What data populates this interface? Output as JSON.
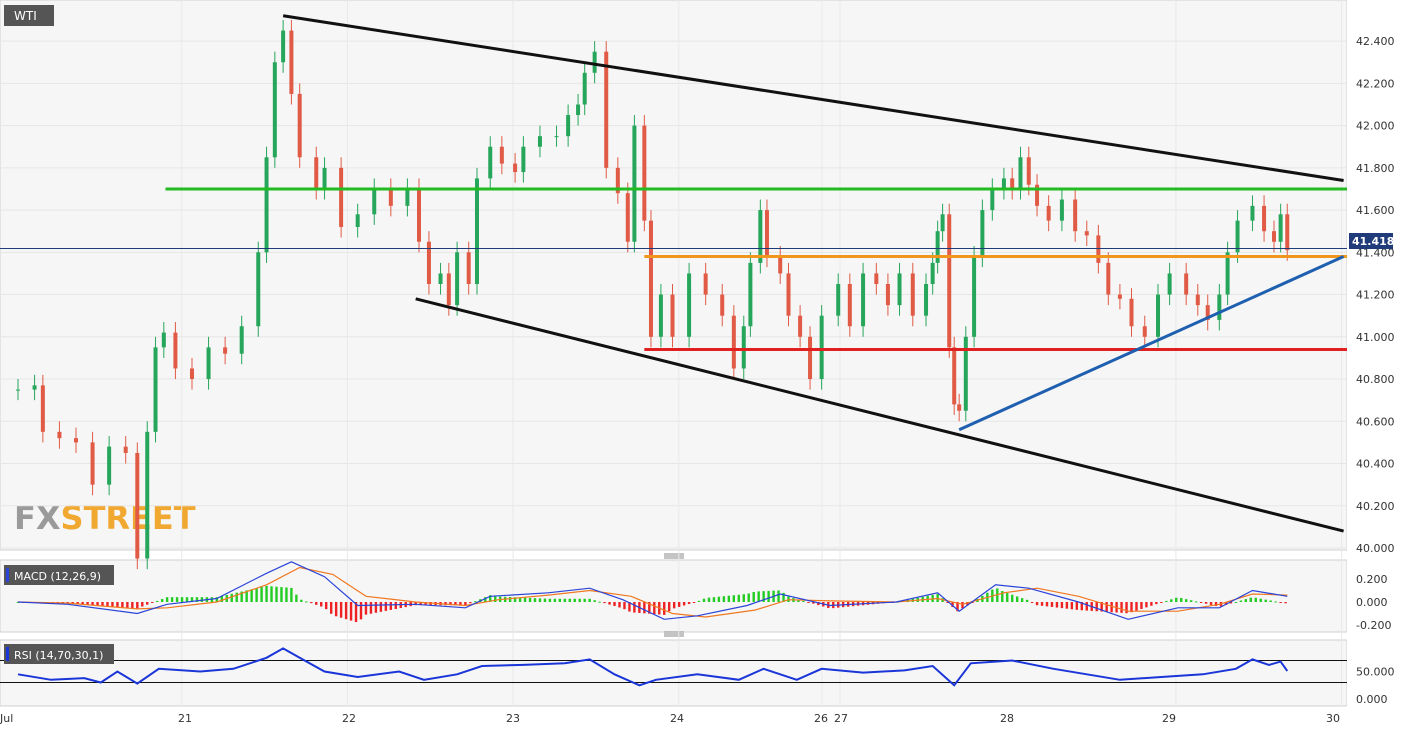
{
  "instrument": "WTI",
  "watermark": {
    "fx": "FX",
    "street": "STREET"
  },
  "price_tag": "41.418",
  "panels": {
    "macd_label": "MACD (12,26,9)",
    "rsi_label": "RSI (14,70,30,1)"
  },
  "colors": {
    "bull": "#26a65b",
    "bear": "#e05a45",
    "trend": "#111111",
    "resistance": "#22bb22",
    "pivot": "#f0961c",
    "support": "#e02020",
    "rising_trend": "#1f5fb0",
    "price_line": "#1f3b7a",
    "price_tag_bg": "#1f3b7a",
    "macd_line": "#2a44d8",
    "signal_line": "#f07820",
    "hist_pos": "#22cc22",
    "hist_neg": "#ee2222",
    "rsi_line": "#1a35d8"
  },
  "chart_data": [
    {
      "type": "candlestick",
      "title": "WTI",
      "ylim": [
        40.0,
        42.5
      ],
      "y_ticks": [
        "42.400",
        "42.200",
        "42.000",
        "41.800",
        "41.600",
        "41.400",
        "41.200",
        "41.000",
        "40.800",
        "40.600",
        "40.400",
        "40.200",
        "40.000"
      ],
      "x_ticks": [
        "Jul",
        "21",
        "22",
        "23",
        "24",
        "26",
        "27",
        "28",
        "29",
        "30"
      ],
      "current_price": 41.418,
      "levels": [
        {
          "name": "resistance",
          "value": 41.7,
          "from": 0.89,
          "to": 2.0
        },
        {
          "name": "pivot",
          "value": 41.38,
          "from": 3.78,
          "to": 2.0
        },
        {
          "name": "support",
          "value": 40.94,
          "from": 3.78,
          "to": 2.0
        }
      ],
      "trendlines": [
        {
          "name": "upper",
          "from": [
            1.6,
            42.52
          ],
          "to": [
            8.0,
            41.74
          ]
        },
        {
          "name": "lower",
          "from": [
            2.4,
            41.18
          ],
          "to": [
            8.0,
            40.08
          ]
        },
        {
          "name": "rising",
          "from": [
            5.68,
            40.56
          ],
          "to": [
            8.0,
            41.38
          ]
        }
      ],
      "series": [
        {
          "name": "WTI",
          "points": [
            [
              0.0,
              40.75
            ],
            [
              0.1,
              40.77
            ],
            [
              0.15,
              40.55
            ],
            [
              0.25,
              40.52
            ],
            [
              0.35,
              40.5
            ],
            [
              0.45,
              40.3
            ],
            [
              0.55,
              40.48
            ],
            [
              0.65,
              40.45
            ],
            [
              0.72,
              39.95
            ],
            [
              0.78,
              40.55
            ],
            [
              0.83,
              40.95
            ],
            [
              0.88,
              41.02
            ],
            [
              0.95,
              40.85
            ],
            [
              1.05,
              40.8
            ],
            [
              1.15,
              40.95
            ],
            [
              1.25,
              40.92
            ],
            [
              1.35,
              41.05
            ],
            [
              1.45,
              41.4
            ],
            [
              1.5,
              41.85
            ],
            [
              1.55,
              42.3
            ],
            [
              1.6,
              42.45
            ],
            [
              1.65,
              42.15
            ],
            [
              1.7,
              41.85
            ],
            [
              1.8,
              41.7
            ],
            [
              1.85,
              41.8
            ],
            [
              1.95,
              41.52
            ],
            [
              2.05,
              41.58
            ],
            [
              2.15,
              41.7
            ],
            [
              2.25,
              41.62
            ],
            [
              2.35,
              41.7
            ],
            [
              2.42,
              41.45
            ],
            [
              2.48,
              41.25
            ],
            [
              2.55,
              41.3
            ],
            [
              2.6,
              41.15
            ],
            [
              2.65,
              41.4
            ],
            [
              2.72,
              41.25
            ],
            [
              2.77,
              41.75
            ],
            [
              2.85,
              41.9
            ],
            [
              2.92,
              41.82
            ],
            [
              3.0,
              41.78
            ],
            [
              3.05,
              41.9
            ],
            [
              3.15,
              41.95
            ],
            [
              3.25,
              41.95
            ],
            [
              3.32,
              42.05
            ],
            [
              3.38,
              42.1
            ],
            [
              3.42,
              42.25
            ],
            [
              3.48,
              42.35
            ],
            [
              3.55,
              41.8
            ],
            [
              3.62,
              41.68
            ],
            [
              3.68,
              41.45
            ],
            [
              3.72,
              42.0
            ],
            [
              3.78,
              41.55
            ],
            [
              3.82,
              41.0
            ],
            [
              3.88,
              41.2
            ],
            [
              3.95,
              41.0
            ],
            [
              4.05,
              41.3
            ],
            [
              4.15,
              41.2
            ],
            [
              4.25,
              41.1
            ],
            [
              4.32,
              40.85
            ],
            [
              4.38,
              41.05
            ],
            [
              4.42,
              41.35
            ],
            [
              4.48,
              41.6
            ],
            [
              4.52,
              41.38
            ],
            [
              4.6,
              41.3
            ],
            [
              4.65,
              41.1
            ],
            [
              4.72,
              41.0
            ],
            [
              4.78,
              40.8
            ],
            [
              4.85,
              41.1
            ],
            [
              4.95,
              41.25
            ],
            [
              5.02,
              41.05
            ],
            [
              5.1,
              41.3
            ],
            [
              5.18,
              41.25
            ],
            [
              5.25,
              41.15
            ],
            [
              5.32,
              41.3
            ],
            [
              5.4,
              41.1
            ],
            [
              5.48,
              41.25
            ],
            [
              5.52,
              41.35
            ],
            [
              5.55,
              41.5
            ],
            [
              5.58,
              41.58
            ],
            [
              5.62,
              40.95
            ],
            [
              5.65,
              40.68
            ],
            [
              5.68,
              40.65
            ],
            [
              5.72,
              41.0
            ],
            [
              5.77,
              41.38
            ],
            [
              5.82,
              41.6
            ],
            [
              5.88,
              41.7
            ],
            [
              5.95,
              41.75
            ],
            [
              6.0,
              41.7
            ],
            [
              6.05,
              41.85
            ],
            [
              6.1,
              41.72
            ],
            [
              6.15,
              41.62
            ],
            [
              6.22,
              41.55
            ],
            [
              6.3,
              41.65
            ],
            [
              6.38,
              41.5
            ],
            [
              6.45,
              41.48
            ],
            [
              6.52,
              41.35
            ],
            [
              6.58,
              41.2
            ],
            [
              6.65,
              41.18
            ],
            [
              6.72,
              41.05
            ],
            [
              6.8,
              41.0
            ],
            [
              6.88,
              41.2
            ],
            [
              6.95,
              41.3
            ],
            [
              7.05,
              41.2
            ],
            [
              7.12,
              41.15
            ],
            [
              7.18,
              41.08
            ],
            [
              7.25,
              41.2
            ],
            [
              7.3,
              41.4
            ],
            [
              7.36,
              41.55
            ],
            [
              7.45,
              41.62
            ],
            [
              7.52,
              41.5
            ],
            [
              7.58,
              41.45
            ],
            [
              7.62,
              41.58
            ],
            [
              7.66,
              41.41
            ]
          ]
        }
      ]
    },
    {
      "type": "line",
      "title": "MACD (12,26,9)",
      "ylim": [
        -0.25,
        0.3
      ],
      "y_ticks": [
        "0.200",
        "0.000",
        "-0.200"
      ],
      "series": [
        {
          "name": "macd",
          "points": [
            [
              0.0,
              0.0
            ],
            [
              0.3,
              -0.02
            ],
            [
              0.72,
              -0.1
            ],
            [
              0.9,
              -0.02
            ],
            [
              1.2,
              0.03
            ],
            [
              1.5,
              0.25
            ],
            [
              1.65,
              0.35
            ],
            [
              1.85,
              0.22
            ],
            [
              2.05,
              -0.03
            ],
            [
              2.4,
              -0.02
            ],
            [
              2.7,
              -0.05
            ],
            [
              2.85,
              0.05
            ],
            [
              3.2,
              0.08
            ],
            [
              3.45,
              0.12
            ],
            [
              3.65,
              0.02
            ],
            [
              3.9,
              -0.15
            ],
            [
              4.1,
              -0.12
            ],
            [
              4.4,
              -0.03
            ],
            [
              4.6,
              0.07
            ],
            [
              4.9,
              -0.03
            ],
            [
              5.3,
              0.0
            ],
            [
              5.55,
              0.08
            ],
            [
              5.68,
              -0.08
            ],
            [
              5.9,
              0.15
            ],
            [
              6.1,
              0.12
            ],
            [
              6.4,
              0.0
            ],
            [
              6.7,
              -0.15
            ],
            [
              7.0,
              -0.05
            ],
            [
              7.25,
              -0.05
            ],
            [
              7.45,
              0.1
            ],
            [
              7.66,
              0.05
            ]
          ]
        },
        {
          "name": "signal",
          "points": [
            [
              0.0,
              0.0
            ],
            [
              0.3,
              -0.01
            ],
            [
              0.72,
              -0.06
            ],
            [
              0.9,
              -0.05
            ],
            [
              1.2,
              0.0
            ],
            [
              1.5,
              0.15
            ],
            [
              1.7,
              0.3
            ],
            [
              1.9,
              0.24
            ],
            [
              2.1,
              0.05
            ],
            [
              2.4,
              0.0
            ],
            [
              2.7,
              -0.03
            ],
            [
              2.9,
              0.02
            ],
            [
              3.2,
              0.06
            ],
            [
              3.45,
              0.1
            ],
            [
              3.7,
              0.05
            ],
            [
              3.95,
              -0.1
            ],
            [
              4.15,
              -0.13
            ],
            [
              4.45,
              -0.07
            ],
            [
              4.65,
              0.02
            ],
            [
              4.9,
              0.01
            ],
            [
              5.3,
              0.0
            ],
            [
              5.55,
              0.03
            ],
            [
              5.7,
              -0.02
            ],
            [
              5.95,
              0.08
            ],
            [
              6.15,
              0.12
            ],
            [
              6.4,
              0.05
            ],
            [
              6.7,
              -0.08
            ],
            [
              7.0,
              -0.08
            ],
            [
              7.25,
              -0.02
            ],
            [
              7.45,
              0.07
            ],
            [
              7.66,
              0.06
            ]
          ]
        }
      ]
    },
    {
      "type": "line",
      "title": "RSI (14,70,30,1)",
      "ylim": [
        0,
        100
      ],
      "y_ticks": [
        "50.000",
        "0.000"
      ],
      "levels": [
        70,
        30
      ],
      "series": [
        {
          "name": "rsi",
          "points": [
            [
              0.0,
              45
            ],
            [
              0.2,
              35
            ],
            [
              0.4,
              38
            ],
            [
              0.5,
              30
            ],
            [
              0.6,
              50
            ],
            [
              0.72,
              28
            ],
            [
              0.85,
              55
            ],
            [
              1.1,
              50
            ],
            [
              1.3,
              55
            ],
            [
              1.5,
              75
            ],
            [
              1.6,
              92
            ],
            [
              1.7,
              75
            ],
            [
              1.85,
              50
            ],
            [
              2.05,
              40
            ],
            [
              2.3,
              50
            ],
            [
              2.45,
              35
            ],
            [
              2.65,
              45
            ],
            [
              2.8,
              60
            ],
            [
              3.05,
              62
            ],
            [
              3.3,
              65
            ],
            [
              3.45,
              72
            ],
            [
              3.6,
              45
            ],
            [
              3.75,
              25
            ],
            [
              3.85,
              35
            ],
            [
              4.1,
              45
            ],
            [
              4.35,
              35
            ],
            [
              4.5,
              55
            ],
            [
              4.7,
              35
            ],
            [
              4.85,
              55
            ],
            [
              5.1,
              48
            ],
            [
              5.35,
              52
            ],
            [
              5.52,
              60
            ],
            [
              5.65,
              25
            ],
            [
              5.75,
              65
            ],
            [
              6.0,
              70
            ],
            [
              6.25,
              55
            ],
            [
              6.45,
              45
            ],
            [
              6.65,
              35
            ],
            [
              6.9,
              40
            ],
            [
              7.15,
              45
            ],
            [
              7.35,
              55
            ],
            [
              7.45,
              72
            ],
            [
              7.55,
              62
            ],
            [
              7.62,
              68
            ],
            [
              7.66,
              51
            ]
          ]
        }
      ]
    }
  ]
}
